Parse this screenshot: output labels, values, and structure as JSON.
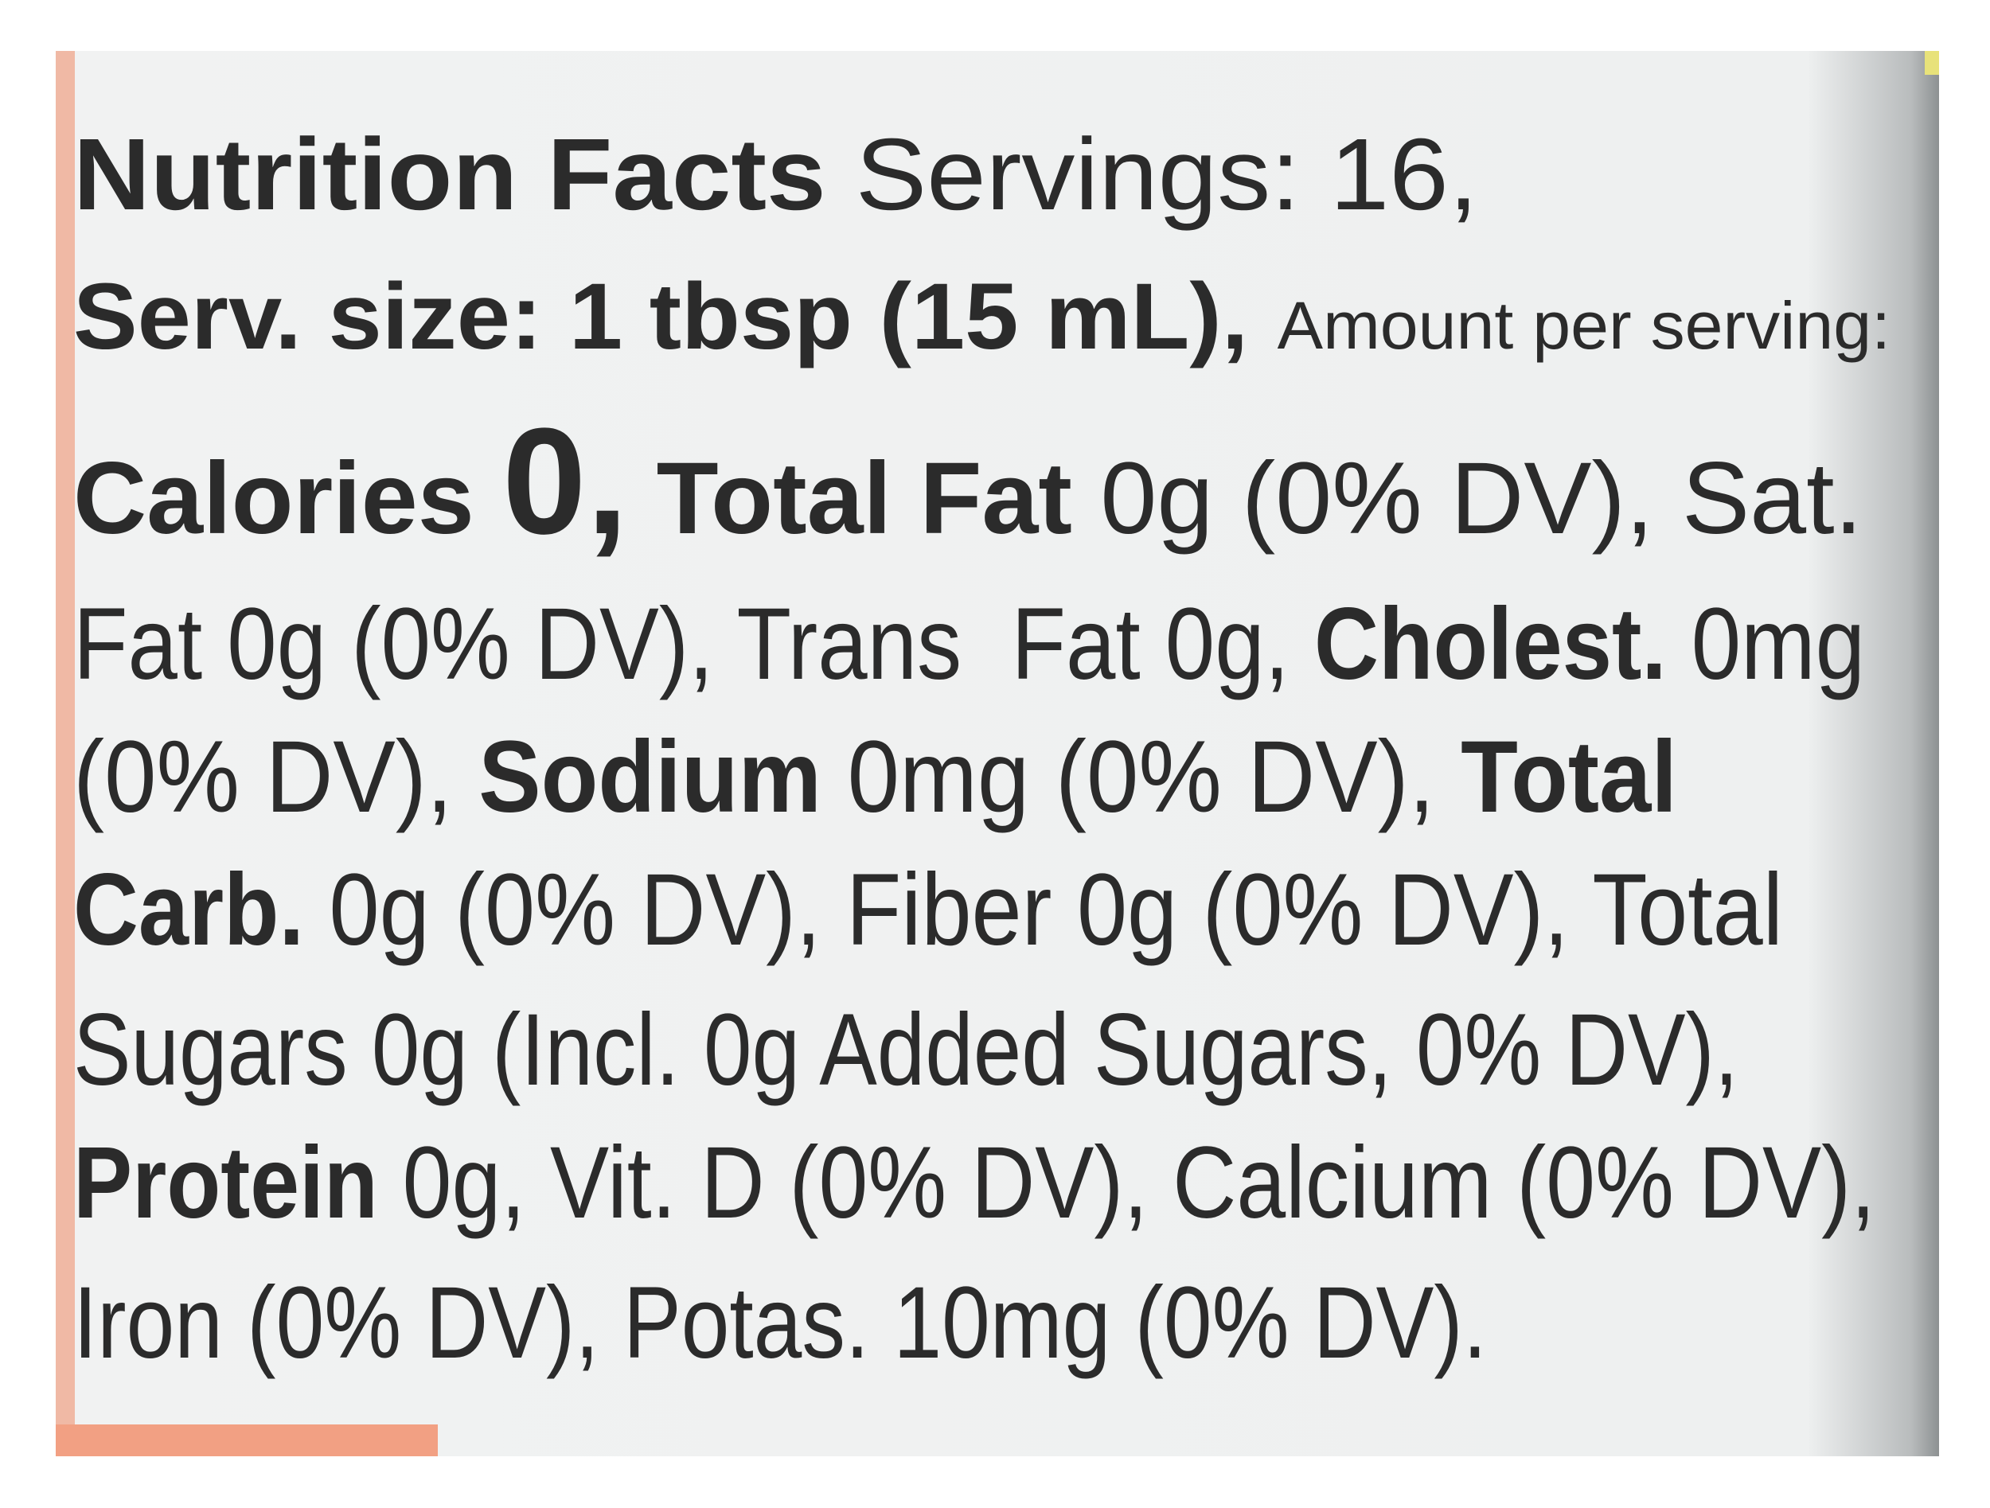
{
  "label": {
    "lines": [
      [
        "Nutrition Facts",
        "Servings: 16,"
      ],
      [
        "Serv. size: 1 tbsp (15 mL),",
        "Amount per serving:"
      ],
      [
        "Calories",
        "0,",
        "Total Fat",
        "0g (0% DV), Sat."
      ],
      [
        "Fat 0g (0% DV), Trans  Fat 0g,",
        "Cholest.",
        "0mg"
      ],
      [
        "(0% DV),",
        "Sodium",
        "0mg (0% DV),",
        "Total"
      ],
      [
        "Carb.",
        "0g (0% DV), Fiber 0g (0% DV), Total"
      ],
      [
        "Sugars 0g (Incl. 0g Added Sugars, 0% DV),"
      ],
      [
        "Protein",
        "0g, Vit. D (0% DV), Calcium (0% DV),"
      ],
      [
        "Iron (0% DV), Potas. 10mg (0% DV)."
      ]
    ]
  }
}
